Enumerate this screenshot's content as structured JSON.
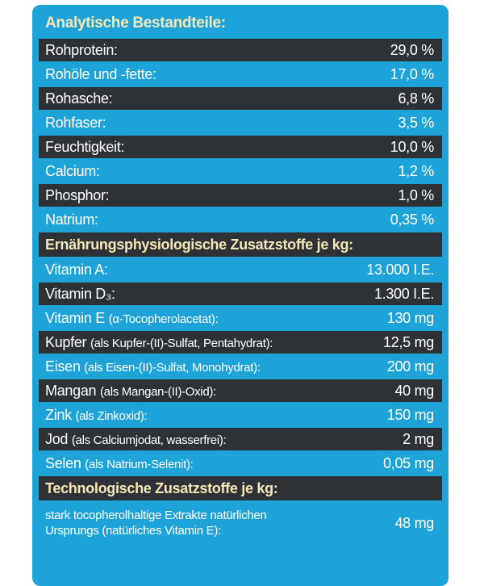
{
  "sections": [
    {
      "title": "Analytische Bestandteile:",
      "rows": [
        {
          "label": "Rohprotein:",
          "value": "29,0 %"
        },
        {
          "label": "Rohöle und -fette:",
          "value": "17,0 %"
        },
        {
          "label": "Rohasche:",
          "value": "6,8 %"
        },
        {
          "label": "Rohfaser:",
          "value": "3,5 %"
        },
        {
          "label": "Feuchtigkeit:",
          "value": "10,0 %"
        },
        {
          "label": "Calcium:",
          "value": "1,2 %"
        },
        {
          "label": "Phosphor:",
          "value": "1,0 %"
        },
        {
          "label": "Natrium:",
          "value": "0,35 %"
        }
      ]
    },
    {
      "title": "Ernährungsphysiologische Zusatzstoffe je kg:",
      "rows": [
        {
          "label": "Vitamin A:",
          "value": "13.000 I.E."
        },
        {
          "label": "Vitamin D₃:",
          "value": "1.300 I.E."
        },
        {
          "label": "Vitamin E",
          "detail": "(α-Tocopherolacetat):",
          "value": "130 mg"
        },
        {
          "label": "Kupfer",
          "detail": "(als Kupfer-(II)-Sulfat, Pentahydrat):",
          "value": "12,5 mg"
        },
        {
          "label": "Eisen",
          "detail": "(als Eisen-(II)-Sulfat, Monohydrat):",
          "value": "200 mg"
        },
        {
          "label": "Mangan",
          "detail": "(als Mangan-(II)-Oxid):",
          "value": "40 mg"
        },
        {
          "label": "Zink",
          "detail": "(als Zinkoxid):",
          "value": "150 mg"
        },
        {
          "label": "Jod",
          "detail": "(als Calciumjodat, wasserfrei):",
          "value": "2 mg"
        },
        {
          "label": "Selen",
          "detail": "(als Natrium-Selenit):",
          "value": "0,05 mg"
        }
      ]
    },
    {
      "title": "Technologische Zusatzstoffe je kg:",
      "rows": [
        {
          "label_lines": [
            "stark tocopherolhaltige Extrakte natürlichen",
            "Ursprungs (natürliches Vitamin E):"
          ],
          "value": "48 mg"
        }
      ]
    }
  ]
}
